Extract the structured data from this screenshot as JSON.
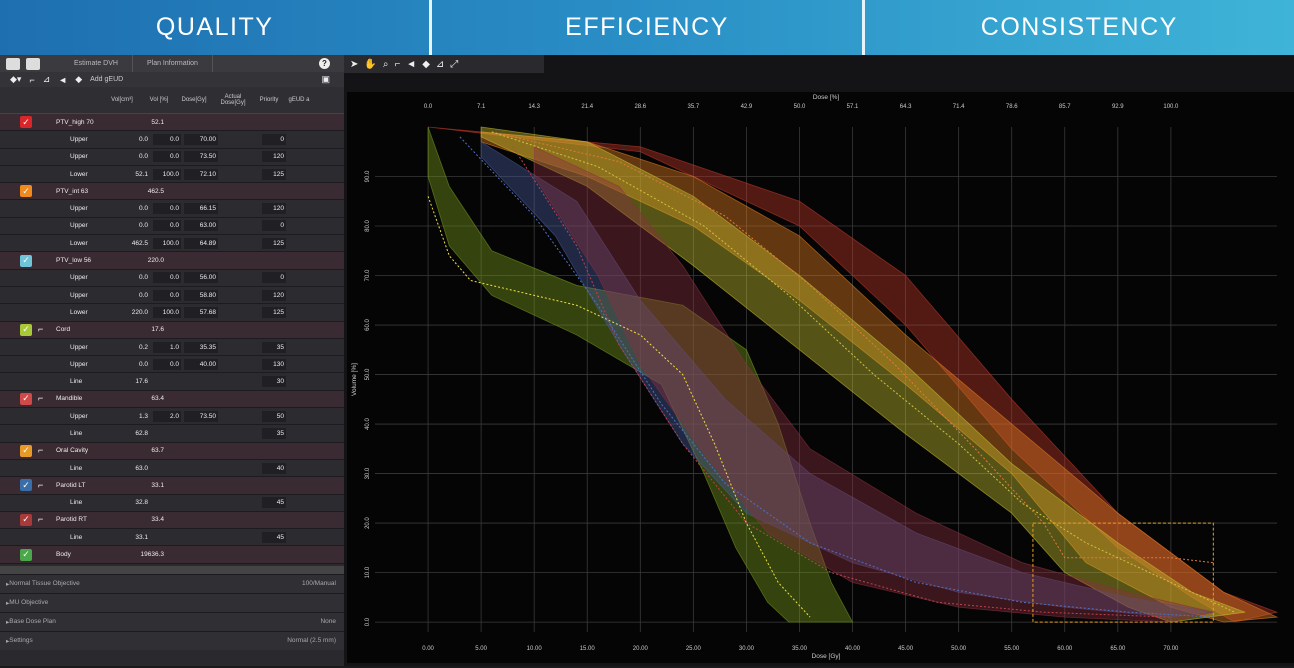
{
  "banner": [
    "QUALITY",
    "EFFICIENCY",
    "CONSISTENCY"
  ],
  "left_panel": {
    "tabs": [
      "Estimate DVH",
      "Plan Information"
    ],
    "toolbar": {
      "add_geud": "Add gEUD"
    },
    "columns": [
      "Vol[cm³]",
      "Vol [%]",
      "Dose[Gy]",
      "Actual Dose[Gy]",
      "Priority",
      "gEUD a"
    ],
    "structures": [
      {
        "name": "PTV_high 70",
        "vol": "52.1",
        "color": "#d8262b",
        "ruler": false,
        "constraints": [
          [
            "Upper",
            "0.0",
            "0.0",
            "70.00",
            "0"
          ],
          [
            "Upper",
            "0.0",
            "0.0",
            "73.50",
            "120"
          ],
          [
            "Lower",
            "52.1",
            "100.0",
            "72.10",
            "125"
          ]
        ]
      },
      {
        "name": "PTV_int 63",
        "vol": "462.5",
        "color": "#f08a1e",
        "ruler": false,
        "constraints": [
          [
            "Upper",
            "0.0",
            "0.0",
            "66.15",
            "120"
          ],
          [
            "Upper",
            "0.0",
            "0.0",
            "63.00",
            "0"
          ],
          [
            "Lower",
            "462.5",
            "100.0",
            "64.89",
            "125"
          ]
        ]
      },
      {
        "name": "PTV_low 56",
        "vol": "220.0",
        "color": "#6fc4d8",
        "ruler": false,
        "constraints": [
          [
            "Upper",
            "0.0",
            "0.0",
            "56.00",
            "0"
          ],
          [
            "Upper",
            "0.0",
            "0.0",
            "58.80",
            "120"
          ],
          [
            "Lower",
            "220.0",
            "100.0",
            "57.68",
            "125"
          ]
        ]
      },
      {
        "name": "Cord",
        "vol": "17.6",
        "color": "#a8c838",
        "ruler": true,
        "constraints": [
          [
            "Upper",
            "0.2",
            "1.0",
            "35.35",
            "35"
          ],
          [
            "Upper",
            "0.0",
            "0.0",
            "40.00",
            "130"
          ],
          [
            "Line",
            "17.6",
            "",
            "",
            "30"
          ]
        ]
      },
      {
        "name": "Mandible",
        "vol": "63.4",
        "color": "#d04a4a",
        "ruler": true,
        "constraints": [
          [
            "Upper",
            "1.3",
            "2.0",
            "73.50",
            "50"
          ],
          [
            "Line",
            "62.8",
            "",
            "",
            "35"
          ]
        ]
      },
      {
        "name": "Oral Cavity",
        "vol": "63.7",
        "color": "#e89a28",
        "ruler": true,
        "constraints": [
          [
            "Line",
            "63.0",
            "",
            "",
            "40"
          ]
        ]
      },
      {
        "name": "Parotid LT",
        "vol": "33.1",
        "color": "#3a6ea8",
        "ruler": true,
        "constraints": [
          [
            "Line",
            "32.8",
            "",
            "",
            "45"
          ]
        ]
      },
      {
        "name": "Parotid RT",
        "vol": "33.4",
        "color": "#a83a3a",
        "ruler": true,
        "constraints": [
          [
            "Line",
            "33.1",
            "",
            "",
            "45"
          ]
        ]
      },
      {
        "name": "Body",
        "vol": "19636.3",
        "color": "#4aa84a",
        "ruler": false,
        "constraints": []
      }
    ],
    "accordions": [
      {
        "label": "Normal Tissue Objective",
        "value": "100/Manual"
      },
      {
        "label": "MU Objective",
        "value": ""
      },
      {
        "label": "Base Dose Plan",
        "value": "None"
      },
      {
        "label": "Settings",
        "value": "Normal (2.5 mm)"
      }
    ]
  },
  "chart_data": {
    "type": "line",
    "xlabel": "Dose [Gy]",
    "x2label": "Dose [%]",
    "ylabel": "Volume [%]",
    "xlim": [
      -5,
      80
    ],
    "ylim": [
      -2,
      100
    ],
    "x_ticks": [
      "0.00",
      "5.00",
      "10.00",
      "15.00",
      "20.00",
      "25.00",
      "30.00",
      "35.00",
      "40.00",
      "45.00",
      "50.00",
      "55.00",
      "60.00",
      "65.00",
      "70.00"
    ],
    "x2_ticks": [
      "0.0",
      "7.1",
      "14.3",
      "21.4",
      "28.6",
      "35.7",
      "42.9",
      "50.0",
      "57.1",
      "64.3",
      "71.4",
      "78.6",
      "85.7",
      "92.9",
      "100.0"
    ],
    "y_ticks": [
      "0.0",
      "10.0",
      "20.0",
      "30.0",
      "40.0",
      "50.0",
      "60.0",
      "70.0",
      "80.0",
      "90.0"
    ],
    "bands": [
      {
        "name": "PTV_high 70",
        "color": "#c0392b",
        "upper": [
          [
            0,
            100
          ],
          [
            20,
            96
          ],
          [
            35,
            85
          ],
          [
            45,
            70
          ],
          [
            55,
            45
          ],
          [
            65,
            22
          ],
          [
            75,
            6
          ],
          [
            80,
            2
          ]
        ],
        "lower": [
          [
            0,
            100
          ],
          [
            20,
            95
          ],
          [
            35,
            80
          ],
          [
            45,
            60
          ],
          [
            55,
            35
          ],
          [
            65,
            15
          ],
          [
            72,
            5
          ],
          [
            76,
            0
          ]
        ]
      },
      {
        "name": "PTV_int 63",
        "color": "#e67e22",
        "upper": [
          [
            5,
            99
          ],
          [
            15,
            97
          ],
          [
            25,
            90
          ],
          [
            35,
            78
          ],
          [
            45,
            58
          ],
          [
            55,
            40
          ],
          [
            65,
            22
          ],
          [
            75,
            6
          ],
          [
            80,
            1
          ]
        ],
        "lower": [
          [
            5,
            97
          ],
          [
            15,
            90
          ],
          [
            25,
            80
          ],
          [
            35,
            65
          ],
          [
            45,
            48
          ],
          [
            55,
            30
          ],
          [
            62,
            12
          ],
          [
            70,
            3
          ],
          [
            75,
            0
          ]
        ]
      },
      {
        "name": "PTV_low 56",
        "color": "#c8c030",
        "upper": [
          [
            5,
            100
          ],
          [
            15,
            97
          ],
          [
            25,
            86
          ],
          [
            35,
            70
          ],
          [
            45,
            52
          ],
          [
            55,
            32
          ],
          [
            65,
            16
          ],
          [
            72,
            6
          ],
          [
            77,
            2
          ]
        ],
        "lower": [
          [
            5,
            98
          ],
          [
            15,
            88
          ],
          [
            25,
            72
          ],
          [
            35,
            55
          ],
          [
            45,
            38
          ],
          [
            55,
            22
          ],
          [
            60,
            10
          ],
          [
            66,
            3
          ],
          [
            70,
            0
          ]
        ]
      },
      {
        "name": "Cord",
        "color": "#7a9a20",
        "upper": [
          [
            0,
            100
          ],
          [
            2,
            88
          ],
          [
            6,
            75
          ],
          [
            14,
            68
          ],
          [
            24,
            64
          ],
          [
            30,
            55
          ],
          [
            33,
            40
          ],
          [
            36,
            20
          ],
          [
            38,
            8
          ],
          [
            40,
            0
          ]
        ],
        "lower": [
          [
            0,
            90
          ],
          [
            2,
            76
          ],
          [
            6,
            66
          ],
          [
            14,
            58
          ],
          [
            22,
            48
          ],
          [
            26,
            30
          ],
          [
            29,
            15
          ],
          [
            32,
            4
          ],
          [
            34,
            0
          ]
        ]
      },
      {
        "name": "Parotid LT",
        "color": "#4a5a9a",
        "upper": [
          [
            5,
            97
          ],
          [
            14,
            85
          ],
          [
            20,
            65
          ],
          [
            28,
            45
          ],
          [
            36,
            30
          ],
          [
            46,
            18
          ],
          [
            56,
            10
          ],
          [
            66,
            5
          ],
          [
            74,
            2
          ]
        ],
        "lower": [
          [
            5,
            94
          ],
          [
            12,
            78
          ],
          [
            18,
            56
          ],
          [
            24,
            36
          ],
          [
            30,
            22
          ],
          [
            40,
            12
          ],
          [
            50,
            6
          ],
          [
            60,
            3
          ],
          [
            70,
            1
          ]
        ]
      },
      {
        "name": "Mandible",
        "color": "#8a3040",
        "upper": [
          [
            10,
            96
          ],
          [
            18,
            88
          ],
          [
            24,
            72
          ],
          [
            30,
            52
          ],
          [
            36,
            35
          ],
          [
            46,
            22
          ],
          [
            56,
            12
          ],
          [
            66,
            6
          ],
          [
            74,
            2
          ]
        ],
        "lower": [
          [
            10,
            90
          ],
          [
            16,
            70
          ],
          [
            20,
            52
          ],
          [
            26,
            34
          ],
          [
            32,
            18
          ],
          [
            40,
            8
          ],
          [
            50,
            3
          ],
          [
            60,
            1
          ],
          [
            70,
            0
          ]
        ]
      }
    ],
    "dashed": [
      {
        "color": "#f0e040",
        "points": [
          [
            0,
            86
          ],
          [
            2,
            74
          ],
          [
            4,
            69
          ],
          [
            8,
            67
          ],
          [
            14,
            64
          ],
          [
            20,
            58
          ],
          [
            24,
            50
          ],
          [
            27,
            36
          ],
          [
            30,
            20
          ],
          [
            33,
            8
          ],
          [
            36,
            1
          ]
        ]
      },
      {
        "color": "#e07a3a",
        "points": [
          [
            6,
            99
          ],
          [
            18,
            93
          ],
          [
            28,
            82
          ],
          [
            36,
            68
          ],
          [
            44,
            52
          ],
          [
            52,
            34
          ],
          [
            58,
            20
          ],
          [
            60,
            13
          ],
          [
            70,
            13
          ],
          [
            74,
            12
          ]
        ]
      },
      {
        "color": "#d0c040",
        "points": [
          [
            6,
            99
          ],
          [
            16,
            92
          ],
          [
            26,
            80
          ],
          [
            34,
            66
          ],
          [
            42,
            50
          ],
          [
            50,
            36
          ],
          [
            56,
            24
          ],
          [
            62,
            16
          ],
          [
            70,
            8
          ],
          [
            76,
            2
          ]
        ]
      },
      {
        "color": "#5070c0",
        "points": [
          [
            3,
            98
          ],
          [
            10,
            82
          ],
          [
            16,
            64
          ],
          [
            22,
            44
          ],
          [
            28,
            28
          ],
          [
            36,
            16
          ],
          [
            46,
            8
          ],
          [
            56,
            4
          ],
          [
            66,
            2
          ],
          [
            74,
            1
          ]
        ]
      },
      {
        "color": "#c04050",
        "points": [
          [
            8,
            96
          ],
          [
            14,
            76
          ],
          [
            18,
            56
          ],
          [
            24,
            36
          ],
          [
            30,
            20
          ],
          [
            38,
            10
          ],
          [
            48,
            4
          ],
          [
            58,
            2
          ],
          [
            70,
            1
          ]
        ]
      }
    ],
    "constraint_box": {
      "color": "#e8a020",
      "x0": 57,
      "x1": 74,
      "y0": 0,
      "y1": 20
    }
  }
}
